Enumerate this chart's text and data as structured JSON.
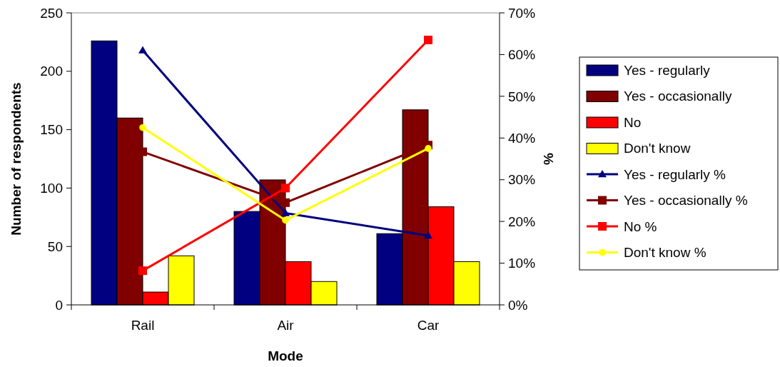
{
  "chart_data": {
    "type": "bar",
    "xlabel": "Mode",
    "ylabel": "Number of respondents",
    "y2label": "%",
    "categories": [
      "Rail",
      "Air",
      "Car"
    ],
    "ylim": [
      0,
      250
    ],
    "yticks": [
      0,
      50,
      100,
      150,
      200,
      250
    ],
    "y2lim": [
      0,
      70
    ],
    "y2ticks": [
      {
        "value": 0,
        "label": "0%"
      },
      {
        "value": 10,
        "label": "10%"
      },
      {
        "value": 20,
        "label": "20%"
      },
      {
        "value": 30,
        "label": "30%"
      },
      {
        "value": 40,
        "label": "40%"
      },
      {
        "value": 50,
        "label": "50%"
      },
      {
        "value": 60,
        "label": "60%"
      },
      {
        "value": 70,
        "label": "70%"
      }
    ],
    "legend": "right",
    "grid": false,
    "series": [
      {
        "name": "Yes - regularly",
        "color": "#000080",
        "values": [
          226,
          80,
          61
        ]
      },
      {
        "name": "Yes - occasionally",
        "color": "#800000",
        "values": [
          160,
          107,
          167
        ]
      },
      {
        "name": "No",
        "color": "#ff0000",
        "values": [
          11,
          37,
          84
        ]
      },
      {
        "name": "Don't know",
        "color": "#ffff00",
        "values": [
          42,
          20,
          37
        ]
      },
      {
        "name": "Yes - regularly %",
        "type": "line",
        "axis": "y2",
        "marker": "triangle",
        "color": "#000080",
        "values": [
          61,
          22,
          16.6
        ]
      },
      {
        "name": "Yes - occasionally %",
        "type": "line",
        "axis": "y2",
        "marker": "square",
        "color": "#800000",
        "values": [
          36.7,
          24.5,
          38.3
        ]
      },
      {
        "name": "No %",
        "type": "line",
        "axis": "y2",
        "marker": "square",
        "color": "#ff0000",
        "values": [
          8.2,
          28,
          63.5
        ]
      },
      {
        "name": "Don't know %",
        "type": "line",
        "axis": "y2",
        "marker": "circle",
        "color": "#ffff00",
        "values": [
          42.5,
          20.3,
          37.5
        ]
      }
    ]
  }
}
